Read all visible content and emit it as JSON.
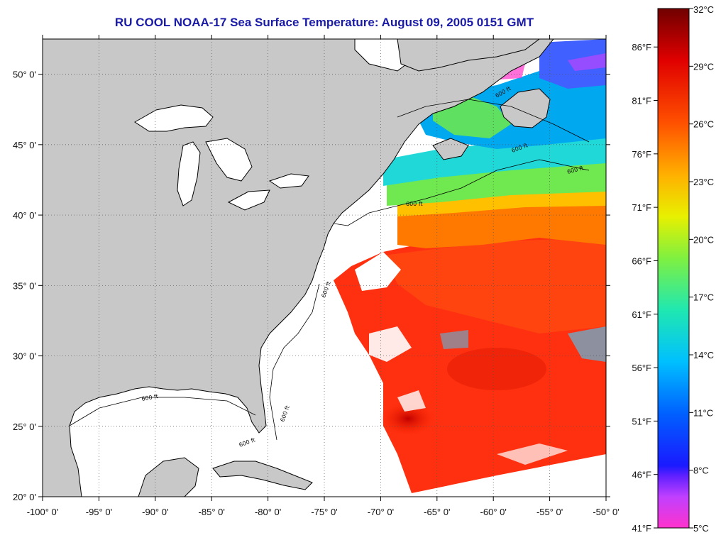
{
  "title": "RU COOL  NOAA-17  Sea Surface Temperature:  August 09, 2005 0151 GMT",
  "map": {
    "lon_range": [
      -100,
      -50
    ],
    "lat_range": [
      20,
      52.5
    ],
    "lon_ticks": [
      "-100° 0'",
      "-95° 0'",
      "-90° 0'",
      "-85° 0'",
      "-80° 0'",
      "-75° 0'",
      "-70° 0'",
      "-65° 0'",
      "-60° 0'",
      "-55° 0'",
      "-50° 0'"
    ],
    "lat_ticks": [
      "20° 0'",
      "25° 0'",
      "30° 0'",
      "35° 0'",
      "40° 0'",
      "45° 0'",
      "50° 0'"
    ],
    "lon_values": [
      -100,
      -95,
      -90,
      -85,
      -80,
      -75,
      -70,
      -65,
      -60,
      -55,
      -50
    ],
    "lat_values": [
      20,
      25,
      30,
      35,
      40,
      45,
      50
    ],
    "bathymetry_labels": [
      "600 ft",
      "600 ft",
      "600 ft",
      "600 ft",
      "600 ft",
      "600 ft",
      "600 ft",
      "600 ft"
    ],
    "colors": {
      "land": "#c8c8c8",
      "ocean_nodata": "#ffffff",
      "frame": "#000000"
    }
  },
  "colorbar": {
    "celsius": [
      "32°C",
      "29°C",
      "26°C",
      "23°C",
      "20°C",
      "17°C",
      "14°C",
      "11°C",
      "8°C",
      "5°C"
    ],
    "celsius_values": [
      32,
      29,
      26,
      23,
      20,
      17,
      14,
      11,
      8,
      5
    ],
    "fahrenheit": [
      "86°F",
      "81°F",
      "76°F",
      "71°F",
      "66°F",
      "61°F",
      "56°F",
      "51°F",
      "46°F",
      "41°F"
    ],
    "fahrenheit_values": [
      86,
      81,
      76,
      71,
      66,
      61,
      56,
      51,
      46,
      41
    ],
    "range_c": [
      5,
      32
    ],
    "gradient": [
      "#ff33cc",
      "#8040ff",
      "#2020ff",
      "#0090ff",
      "#00d0e0",
      "#40f080",
      "#c0f000",
      "#ffe000",
      "#ff8000",
      "#ff3000",
      "#e00000",
      "#800000"
    ]
  }
}
